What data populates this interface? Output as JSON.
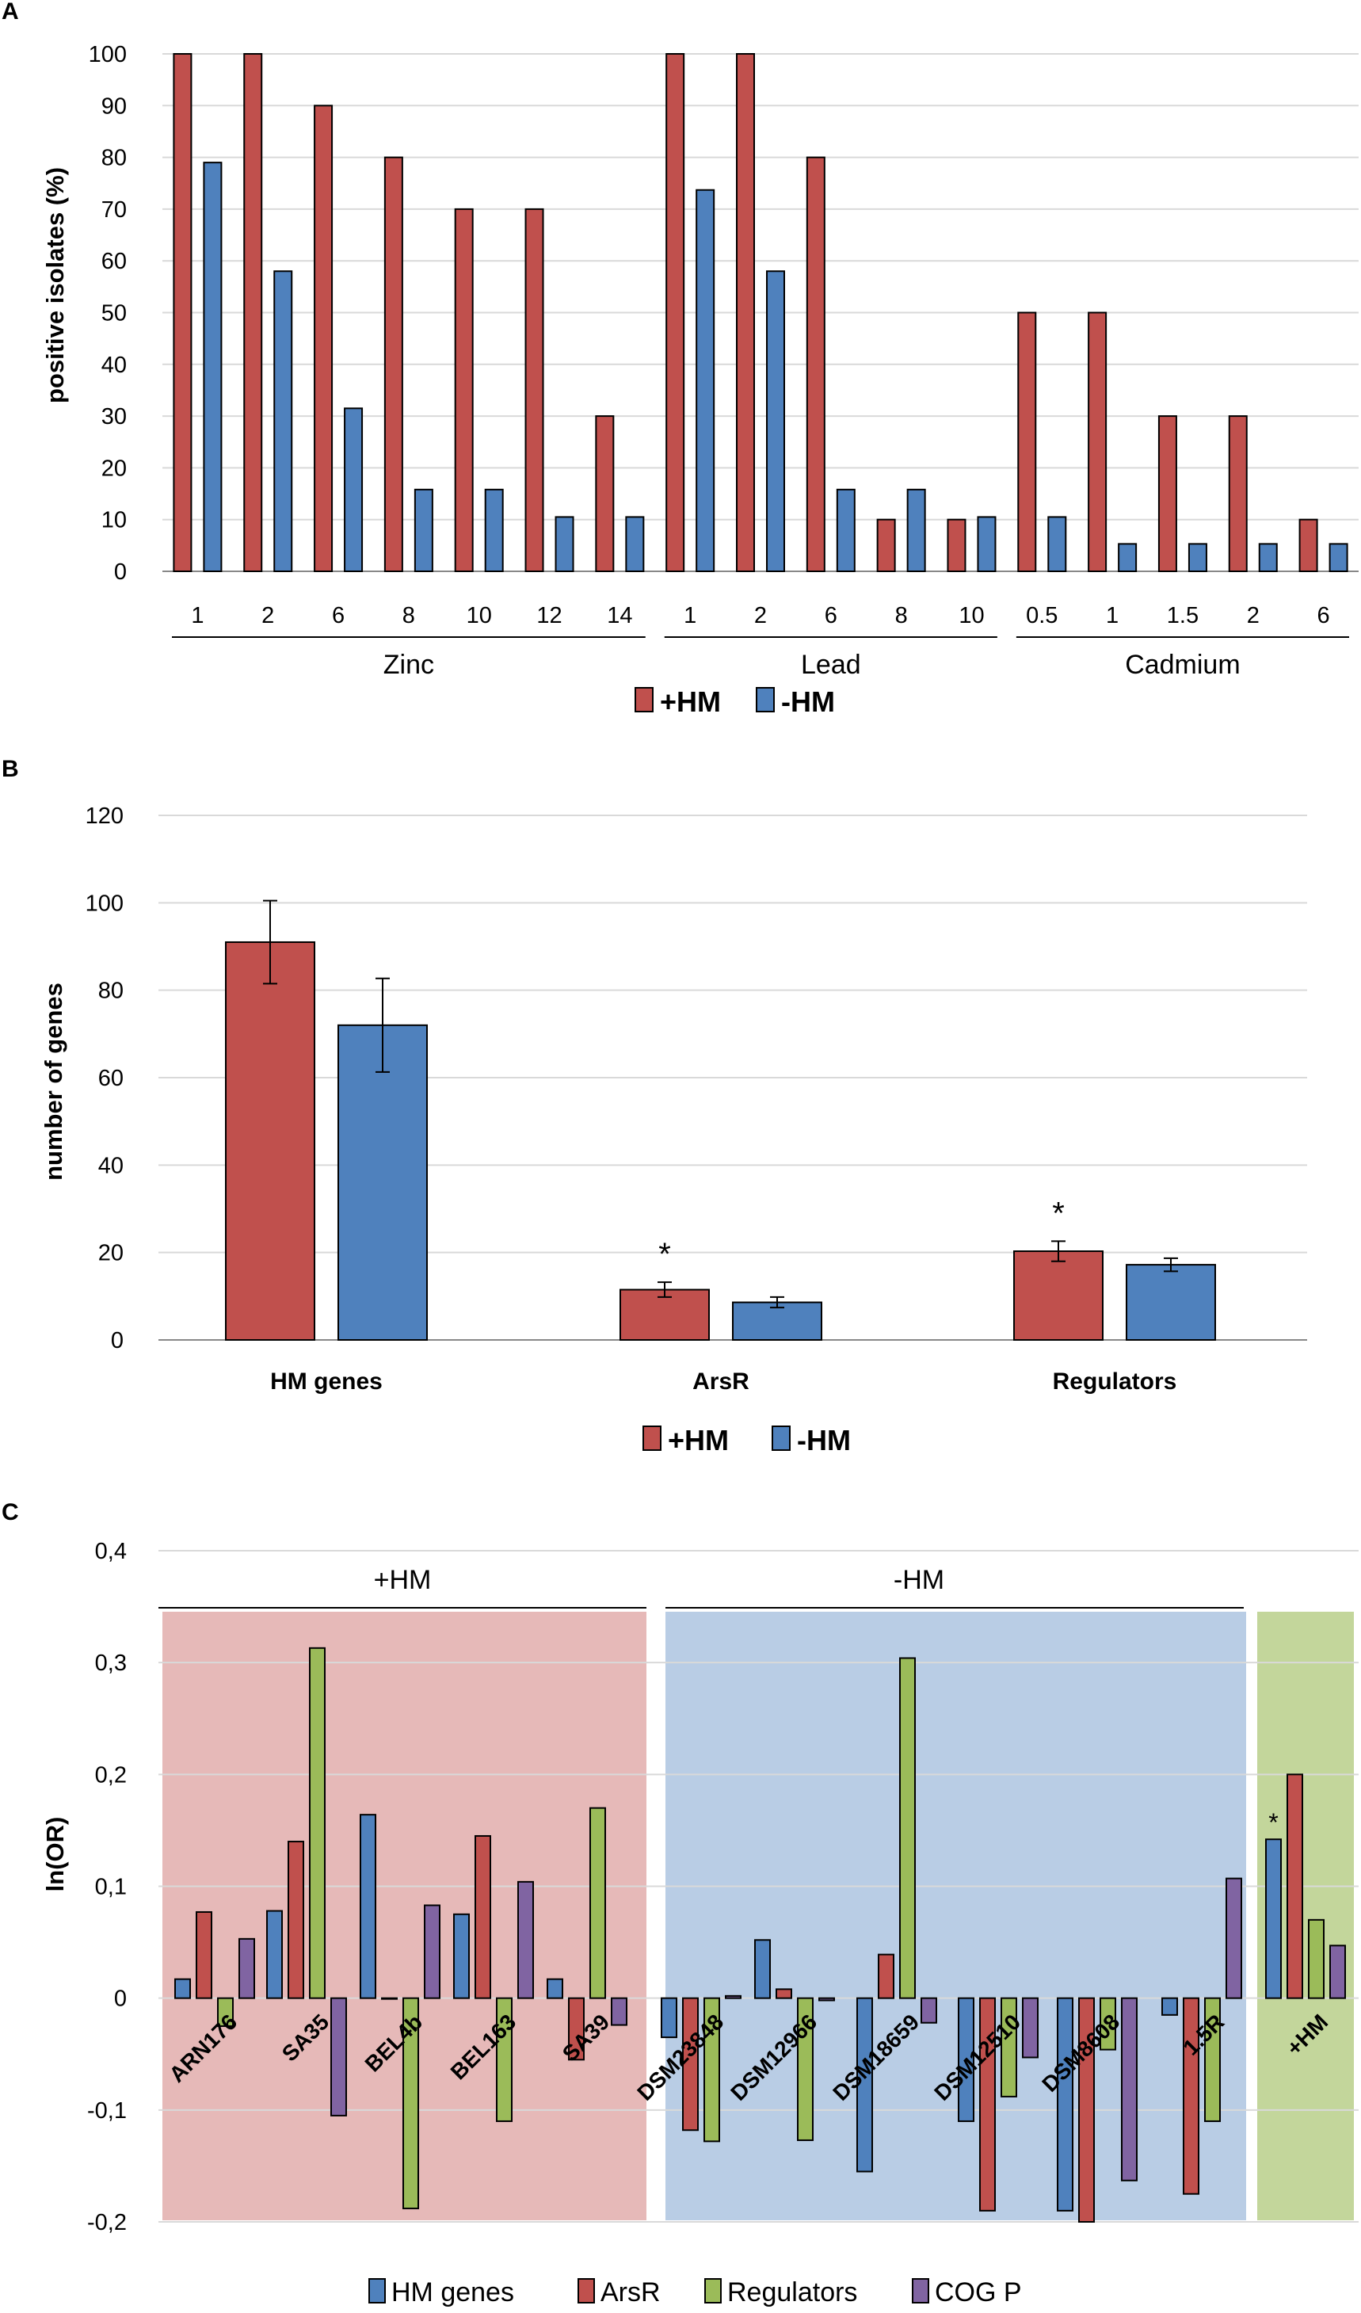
{
  "colors": {
    "red": "#C0504D",
    "blue": "#4F81BD",
    "green": "#9BBB59",
    "purple": "#8064A2",
    "grid": "#D9D9D9",
    "bg_plus": "#E6B9B8",
    "bg_minus": "#B9CDE5",
    "bg_total": "#C3D69B"
  },
  "chart_data": [
    {
      "panel": "A",
      "type": "bar",
      "ylabel": "positive isolates (%)",
      "ylim": [
        0,
        100
      ],
      "yticks": [
        "0",
        "10",
        "20",
        "30",
        "40",
        "50",
        "60",
        "70",
        "80",
        "90",
        "100"
      ],
      "groups": [
        {
          "name": "Zinc",
          "categories": [
            "1",
            "2",
            "6",
            "8",
            "10",
            "12",
            "14"
          ]
        },
        {
          "name": "Lead",
          "categories": [
            "1",
            "2",
            "6",
            "8",
            "10"
          ]
        },
        {
          "name": "Cadmium",
          "categories": [
            "0.5",
            "1",
            "1.5",
            "2",
            "6"
          ]
        }
      ],
      "series": [
        {
          "name": "+HM",
          "values": [
            100,
            100,
            90,
            80,
            70,
            70,
            30,
            100,
            100,
            80,
            10,
            10,
            50,
            50,
            30,
            30,
            10
          ]
        },
        {
          "name": "-HM",
          "values": [
            79,
            58,
            31.5,
            15.8,
            15.8,
            10.5,
            10.5,
            73.7,
            58,
            15.8,
            15.8,
            10.5,
            10.5,
            5.3,
            5.3,
            5.3,
            5.3
          ]
        }
      ]
    },
    {
      "panel": "B",
      "type": "bar",
      "ylabel": "number of genes",
      "ylim": [
        0,
        120
      ],
      "yticks": [
        "0",
        "20",
        "40",
        "60",
        "80",
        "100",
        "120"
      ],
      "categories": [
        "HM genes",
        "ArsR",
        "Regulators"
      ],
      "series": [
        {
          "name": "+HM",
          "values": [
            91,
            11.5,
            20.3
          ],
          "errors": [
            9.5,
            1.7,
            2.3
          ]
        },
        {
          "name": "-HM",
          "values": [
            72,
            8.6,
            17.2
          ],
          "errors": [
            10.7,
            1.2,
            1.5
          ]
        }
      ],
      "significance_marks": [
        "",
        "*",
        "*"
      ]
    },
    {
      "panel": "C",
      "type": "bar",
      "ylabel": "ln(OR)",
      "ylim": [
        -0.2,
        0.4
      ],
      "yticks": [
        "-0,2",
        "-0,1",
        "0",
        "0,1",
        "0,2",
        "0,3",
        "0,4"
      ],
      "section_labels": [
        "+HM",
        "-HM"
      ],
      "categories": [
        "ARN176",
        "SA35",
        "BEL4b",
        "BEL163",
        "SA39",
        "DSM23848",
        "DSM12966",
        "DSM18659",
        "DSM12510",
        "DSM8608",
        "1.5R",
        "+HM"
      ],
      "series": [
        {
          "name": "HM genes",
          "values": [
            0.017,
            0.078,
            0.164,
            0.075,
            0.017,
            -0.035,
            0.052,
            -0.155,
            -0.11,
            -0.19,
            -0.015,
            0.142
          ]
        },
        {
          "name": "ArsR",
          "values": [
            0.077,
            0.14,
            0,
            0.145,
            -0.055,
            -0.118,
            0.008,
            0.039,
            -0.19,
            -0.2,
            -0.175,
            0.2
          ]
        },
        {
          "name": "Regulators",
          "values": [
            -0.025,
            0.313,
            -0.188,
            -0.11,
            0.17,
            -0.128,
            -0.127,
            0.304,
            -0.088,
            -0.046,
            -0.11,
            0.07
          ]
        },
        {
          "name": "COG P",
          "values": [
            0.053,
            -0.105,
            0.083,
            0.104,
            -0.024,
            0.002,
            -0.002,
            -0.022,
            -0.053,
            -0.163,
            0.107,
            0.047
          ]
        }
      ],
      "significance_marks": [
        "",
        "",
        "",
        "",
        "",
        "",
        "",
        "",
        "",
        "",
        "",
        "*"
      ]
    }
  ]
}
